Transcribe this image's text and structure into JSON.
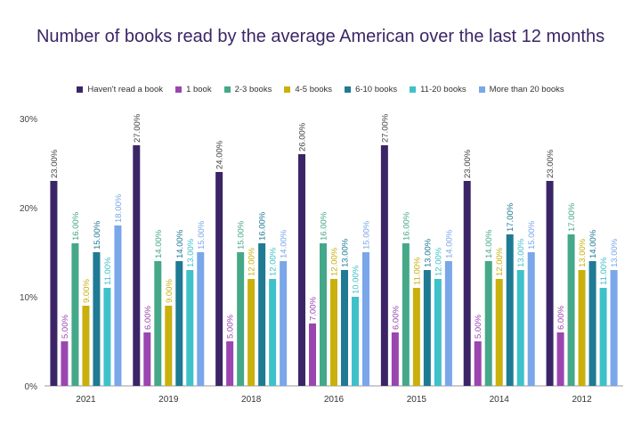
{
  "chart_data": {
    "type": "bar",
    "title": "Number of books read by the average American over the last 12 months",
    "categories": [
      "2021",
      "2019",
      "2018",
      "2016",
      "2015",
      "2014",
      "2012"
    ],
    "ylim": [
      0,
      30
    ],
    "yticks": [
      "0%",
      "10%",
      "20%",
      "30%"
    ],
    "grid": false,
    "legend_position": "top",
    "series": [
      {
        "name": "Haven't read a book",
        "color": "#3b2566",
        "values": [
          23,
          27,
          24,
          26,
          27,
          23,
          23
        ]
      },
      {
        "name": "1 book",
        "color": "#9b45b0",
        "values": [
          5,
          6,
          5,
          7,
          6,
          5,
          6
        ]
      },
      {
        "name": "2-3 books",
        "color": "#45a889",
        "values": [
          16,
          14,
          15,
          16,
          16,
          14,
          17
        ]
      },
      {
        "name": "4-5 books",
        "color": "#c9b00c",
        "values": [
          9,
          9,
          12,
          12,
          11,
          12,
          13
        ]
      },
      {
        "name": "6-10 books",
        "color": "#1f7a94",
        "values": [
          15,
          14,
          16,
          13,
          13,
          17,
          14
        ]
      },
      {
        "name": "11-20 books",
        "color": "#3fc1c9",
        "values": [
          11,
          13,
          12,
          10,
          12,
          13,
          11
        ]
      },
      {
        "name": "More than 20 books",
        "color": "#7aa6ea",
        "values": [
          18,
          15,
          14,
          15,
          14,
          15,
          13
        ]
      }
    ]
  }
}
